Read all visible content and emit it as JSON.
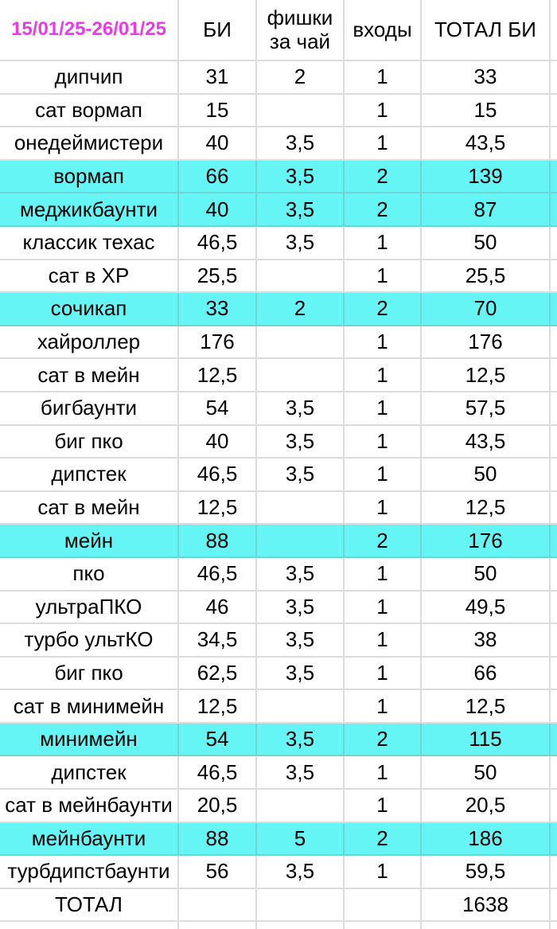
{
  "header": {
    "date_range": "15/01/25-26/01/25",
    "columns": [
      "БИ",
      "фишки за чай",
      "входы",
      "ТОТАЛ БИ"
    ]
  },
  "colors": {
    "date_text": "#E93BE9",
    "row_highlight": "#66F5F5",
    "gridline": "#DCDCDC",
    "text": "#000000",
    "background": "#FFFFFF"
  },
  "rows": [
    {
      "name": "дипчип",
      "bi": "31",
      "chips": "2",
      "entries": "1",
      "total": "33",
      "highlight": false
    },
    {
      "name": "сат вормап",
      "bi": "15",
      "chips": "",
      "entries": "1",
      "total": "15",
      "highlight": false
    },
    {
      "name": "онедеймистери",
      "bi": "40",
      "chips": "3,5",
      "entries": "1",
      "total": "43,5",
      "highlight": false
    },
    {
      "name": "вормап",
      "bi": "66",
      "chips": "3,5",
      "entries": "2",
      "total": "139",
      "highlight": true
    },
    {
      "name": "меджикбаунти",
      "bi": "40",
      "chips": "3,5",
      "entries": "2",
      "total": "87",
      "highlight": true
    },
    {
      "name": "классик техас",
      "bi": "46,5",
      "chips": "3,5",
      "entries": "1",
      "total": "50",
      "highlight": false
    },
    {
      "name": "сат в ХР",
      "bi": "25,5",
      "chips": "",
      "entries": "1",
      "total": "25,5",
      "highlight": false
    },
    {
      "name": "сочикап",
      "bi": "33",
      "chips": "2",
      "entries": "2",
      "total": "70",
      "highlight": true
    },
    {
      "name": "хайроллер",
      "bi": "176",
      "chips": "",
      "entries": "1",
      "total": "176",
      "highlight": false
    },
    {
      "name": "сат в мейн",
      "bi": "12,5",
      "chips": "",
      "entries": "1",
      "total": "12,5",
      "highlight": false
    },
    {
      "name": "бигбаунти",
      "bi": "54",
      "chips": "3,5",
      "entries": "1",
      "total": "57,5",
      "highlight": false
    },
    {
      "name": "биг пко",
      "bi": "40",
      "chips": "3,5",
      "entries": "1",
      "total": "43,5",
      "highlight": false
    },
    {
      "name": "дипстек",
      "bi": "46,5",
      "chips": "3,5",
      "entries": "1",
      "total": "50",
      "highlight": false
    },
    {
      "name": "сат в мейн",
      "bi": "12,5",
      "chips": "",
      "entries": "1",
      "total": "12,5",
      "highlight": false
    },
    {
      "name": "мейн",
      "bi": "88",
      "chips": "",
      "entries": "2",
      "total": "176",
      "highlight": true
    },
    {
      "name": "пко",
      "bi": "46,5",
      "chips": "3,5",
      "entries": "1",
      "total": "50",
      "highlight": false
    },
    {
      "name": "ультраПКО",
      "bi": "46",
      "chips": "3,5",
      "entries": "1",
      "total": "49,5",
      "highlight": false
    },
    {
      "name": "турбо ультКО",
      "bi": "34,5",
      "chips": "3,5",
      "entries": "1",
      "total": "38",
      "highlight": false
    },
    {
      "name": "биг пко",
      "bi": "62,5",
      "chips": "3,5",
      "entries": "1",
      "total": "66",
      "highlight": false
    },
    {
      "name": "сат в минимейн",
      "bi": "12,5",
      "chips": "",
      "entries": "1",
      "total": "12,5",
      "highlight": false
    },
    {
      "name": "минимейн",
      "bi": "54",
      "chips": "3,5",
      "entries": "2",
      "total": "115",
      "highlight": true
    },
    {
      "name": "дипстек",
      "bi": "46,5",
      "chips": "3,5",
      "entries": "1",
      "total": "50",
      "highlight": false
    },
    {
      "name": "сат в мейнбаунти",
      "bi": "20,5",
      "chips": "",
      "entries": "1",
      "total": "20,5",
      "highlight": false
    },
    {
      "name": "мейнбаунти",
      "bi": "88",
      "chips": "5",
      "entries": "2",
      "total": "186",
      "highlight": true
    },
    {
      "name": "турбдипстбаунти",
      "bi": "56",
      "chips": "3,5",
      "entries": "1",
      "total": "59,5",
      "highlight": false
    },
    {
      "name": "ТОТАЛ",
      "bi": "",
      "chips": "",
      "entries": "",
      "total": "1638",
      "highlight": false
    }
  ]
}
